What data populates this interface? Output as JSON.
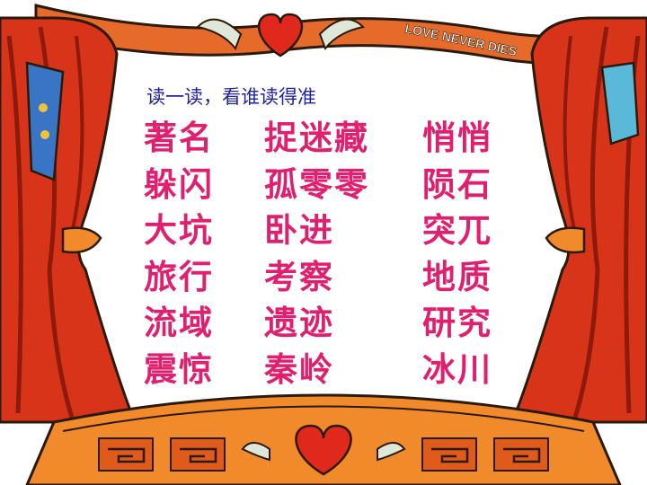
{
  "instruction": "读一读，看谁读得准",
  "banner_text": "LOVE NEVER DIES",
  "words": [
    [
      "著名",
      "捉迷藏",
      "悄悄"
    ],
    [
      "躲闪",
      "孤零零",
      "陨石"
    ],
    [
      "大坑",
      "卧进",
      "突兀"
    ],
    [
      "旅行",
      "考察",
      "地质"
    ],
    [
      "流域",
      "遗迹",
      "研究"
    ],
    [
      "震惊",
      "秦岭",
      "冰川"
    ]
  ],
  "colors": {
    "instruction": "#1f1fa8",
    "words": "#e01f6e",
    "curtain": "#d8341a",
    "curtain_shadow": "#8e1a0c",
    "stage_base": "#f08a2a",
    "banner": "#e66a2a"
  },
  "icons": [
    "heart-with-wings-icon",
    "heart-icon",
    "swirl-ornament-icon"
  ]
}
